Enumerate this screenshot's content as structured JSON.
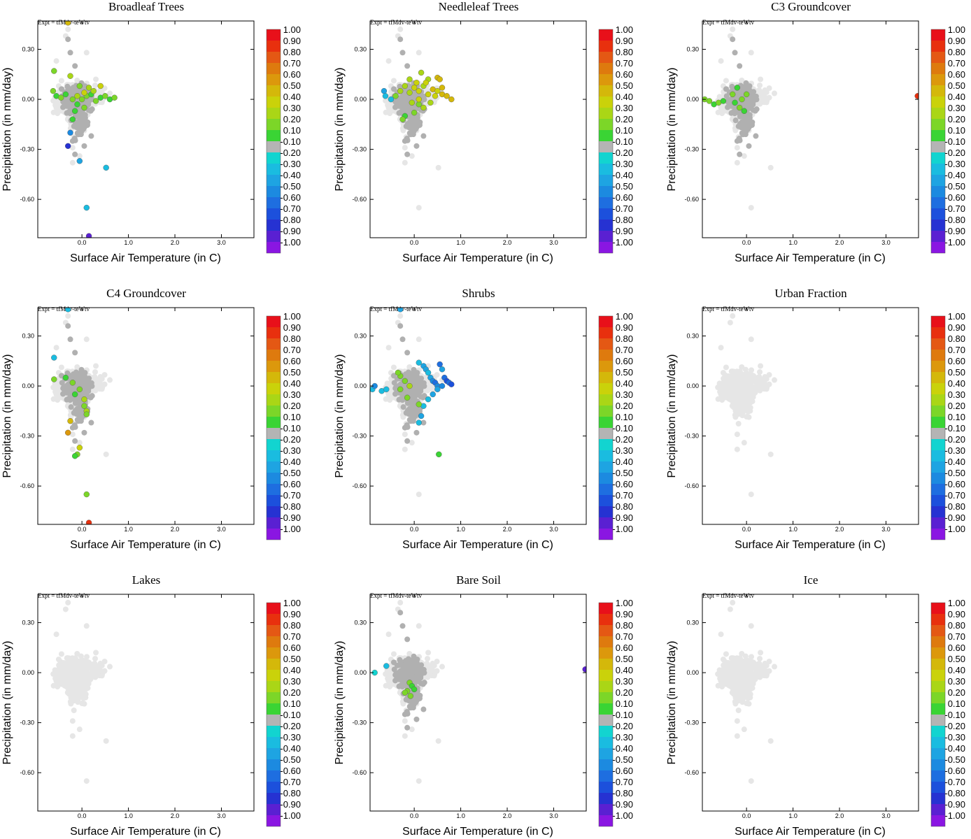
{
  "chart_data": {
    "type": "scatter",
    "common": {
      "experiment_label": "Expt = tfMdv-teWtv",
      "xlabel": "Surface Air Temperature (in C)",
      "ylabel": "Precipitation (in mm/day)",
      "xlim": [
        -0.95,
        3.7
      ],
      "ylim": [
        -0.83,
        0.47
      ],
      "x_ticks": [
        "0.0",
        "1.0",
        "2.0",
        "3.0"
      ],
      "x_tick_values": [
        0,
        1,
        2,
        3
      ],
      "y_ticks": [
        "0.30",
        "0.00",
        "-0.30",
        "-0.60"
      ],
      "y_tick_values": [
        0.3,
        0,
        -0.3,
        -0.6
      ],
      "colorbar_labels": [
        "1.00",
        "0.90",
        "0.80",
        "0.70",
        "0.60",
        "0.50",
        "0.40",
        "0.30",
        "0.20",
        "0.10",
        "-0.10",
        "-0.20",
        "-0.30",
        "-0.40",
        "-0.50",
        "-0.60",
        "-0.70",
        "-0.80",
        "-0.90",
        "-1.00"
      ],
      "colorbar_colors": [
        "#e8101a",
        "#e8300e",
        "#e45814",
        "#de7a0e",
        "#dc980c",
        "#d4b80a",
        "#cad20a",
        "#aad616",
        "#7cd628",
        "#3ad434",
        "#b4b4b4",
        "#12d4d0",
        "#1abce0",
        "#1ea4e2",
        "#1c8ae0",
        "#1e6ee0",
        "#1c50dc",
        "#2632d2",
        "#5a20d2",
        "#8a16e2"
      ],
      "background_color": "#e6e6e6",
      "neutral_color": "#b0b0b0"
    },
    "panels": [
      {
        "title": "Broadleaf Trees",
        "points": [
          [
            -0.3,
            0.46,
            0.5
          ],
          [
            -0.6,
            0.17,
            0.2
          ],
          [
            -0.62,
            0.05,
            0.2
          ],
          [
            -0.55,
            0.02,
            0.15
          ],
          [
            -0.45,
            0.01,
            0.2
          ],
          [
            -0.35,
            0.03,
            0.15
          ],
          [
            -0.2,
            0.0,
            0.2
          ],
          [
            -0.1,
            -0.03,
            0.15
          ],
          [
            0.0,
            0.0,
            0.2
          ],
          [
            0.1,
            0.02,
            0.25
          ],
          [
            0.2,
            0.03,
            0.15
          ],
          [
            0.3,
            -0.01,
            0.2
          ],
          [
            0.4,
            0.01,
            0.15
          ],
          [
            0.5,
            0.02,
            0.2
          ],
          [
            0.6,
            0.0,
            0.15
          ],
          [
            0.7,
            0.01,
            0.2
          ],
          [
            -0.15,
            -0.07,
            0.15
          ],
          [
            0.05,
            -0.05,
            0.2
          ],
          [
            -0.2,
            -0.12,
            0.15
          ],
          [
            0.25,
            0.05,
            0.3
          ],
          [
            -0.05,
            0.08,
            0.25
          ],
          [
            0.15,
            0.07,
            0.3
          ],
          [
            0.4,
            0.08,
            0.4
          ],
          [
            -0.25,
            0.14,
            0.3
          ],
          [
            -0.25,
            -0.2,
            -0.4
          ],
          [
            -0.3,
            -0.28,
            -0.7
          ],
          [
            -0.05,
            -0.37,
            -0.3
          ],
          [
            0.52,
            -0.41,
            -0.2
          ],
          [
            0.1,
            -0.65,
            -0.2
          ],
          [
            0.15,
            -0.82,
            -0.8
          ],
          [
            0.05,
            0.04,
            0.4
          ],
          [
            -0.1,
            0.02,
            0.3
          ]
        ]
      },
      {
        "title": "Needleleaf Trees",
        "points": [
          [
            -0.65,
            0.05,
            -0.3
          ],
          [
            -0.62,
            0.02,
            -0.2
          ],
          [
            -0.5,
            0.0,
            -0.2
          ],
          [
            -0.4,
            0.02,
            0.2
          ],
          [
            -0.3,
            0.05,
            0.3
          ],
          [
            -0.2,
            0.08,
            0.35
          ],
          [
            -0.1,
            0.04,
            0.3
          ],
          [
            0.0,
            0.07,
            0.4
          ],
          [
            0.1,
            0.05,
            0.45
          ],
          [
            0.2,
            0.08,
            0.35
          ],
          [
            0.3,
            0.03,
            0.4
          ],
          [
            0.4,
            0.06,
            0.5
          ],
          [
            0.5,
            0.05,
            0.45
          ],
          [
            0.6,
            0.03,
            0.5
          ],
          [
            0.7,
            0.02,
            0.55
          ],
          [
            0.8,
            0.0,
            0.5
          ],
          [
            0.5,
            0.13,
            0.55
          ],
          [
            0.55,
            0.12,
            0.5
          ],
          [
            0.3,
            0.12,
            0.35
          ],
          [
            0.15,
            0.16,
            0.3
          ],
          [
            0.05,
            0.1,
            0.4
          ],
          [
            -0.05,
            -0.02,
            0.3
          ],
          [
            0.1,
            -0.03,
            0.25
          ],
          [
            0.2,
            -0.05,
            0.3
          ],
          [
            0.0,
            -0.08,
            0.2
          ],
          [
            -0.2,
            -0.1,
            0.15
          ],
          [
            -0.25,
            -0.12,
            0.2
          ],
          [
            0.1,
            0.0,
            0.4
          ],
          [
            0.25,
            0.1,
            0.45
          ],
          [
            0.35,
            -0.02,
            0.35
          ],
          [
            0.45,
            0.02,
            0.4
          ],
          [
            -0.1,
            0.12,
            0.3
          ],
          [
            0.6,
            0.07,
            0.55
          ]
        ]
      },
      {
        "title": "C3 Groundcover",
        "points": [
          [
            -0.9,
            0.0,
            0.2
          ],
          [
            -0.8,
            -0.01,
            0.2
          ],
          [
            -0.7,
            -0.03,
            0.15
          ],
          [
            -0.6,
            -0.02,
            0.2
          ],
          [
            -0.5,
            -0.01,
            0.15
          ],
          [
            -0.3,
            0.03,
            0.2
          ],
          [
            -0.2,
            0.07,
            0.15
          ],
          [
            -0.1,
            0.0,
            0.2
          ],
          [
            -0.15,
            -0.05,
            0.2
          ],
          [
            -0.05,
            -0.07,
            0.15
          ],
          [
            0.0,
            0.03,
            0.2
          ],
          [
            -0.25,
            -0.02,
            0.15
          ],
          [
            3.68,
            0.02,
            0.9
          ]
        ]
      },
      {
        "title": "C4 Groundcover",
        "points": [
          [
            -0.6,
            0.04,
            0.2
          ],
          [
            -0.3,
            0.46,
            -0.2
          ],
          [
            -0.6,
            0.17,
            -0.2
          ],
          [
            -0.35,
            0.05,
            0.15
          ],
          [
            -0.2,
            0.02,
            0.2
          ],
          [
            -0.05,
            -0.02,
            0.2
          ],
          [
            0.05,
            -0.12,
            0.25
          ],
          [
            0.1,
            -0.15,
            0.3
          ],
          [
            0.1,
            -0.17,
            0.25
          ],
          [
            -0.25,
            -0.21,
            0.5
          ],
          [
            -0.3,
            -0.28,
            0.6
          ],
          [
            -0.05,
            -0.37,
            0.45
          ],
          [
            -0.1,
            -0.41,
            0.2
          ],
          [
            -0.15,
            -0.42,
            0.15
          ],
          [
            0.1,
            -0.65,
            0.2
          ],
          [
            0.15,
            -0.82,
            0.95
          ],
          [
            -0.15,
            -0.05,
            0.15
          ],
          [
            0.05,
            -0.08,
            0.3
          ]
        ]
      },
      {
        "title": "Shrubs",
        "points": [
          [
            -0.9,
            -0.02,
            -0.2
          ],
          [
            -0.85,
            0.0,
            -0.4
          ],
          [
            -0.7,
            -0.03,
            -0.2
          ],
          [
            -0.6,
            -0.02,
            -0.2
          ],
          [
            -0.3,
            0.46,
            -0.3
          ],
          [
            0.1,
            0.14,
            -0.2
          ],
          [
            0.2,
            0.12,
            -0.3
          ],
          [
            0.25,
            0.1,
            -0.3
          ],
          [
            0.3,
            0.08,
            -0.2
          ],
          [
            0.35,
            0.05,
            -0.3
          ],
          [
            0.4,
            0.03,
            -0.4
          ],
          [
            0.45,
            0.02,
            -0.5
          ],
          [
            0.5,
            0.0,
            -0.4
          ],
          [
            0.55,
            0.13,
            -0.5
          ],
          [
            0.6,
            0.1,
            -0.3
          ],
          [
            0.65,
            0.05,
            -0.5
          ],
          [
            0.7,
            0.03,
            -0.6
          ],
          [
            0.75,
            0.02,
            -0.5
          ],
          [
            0.8,
            0.01,
            -0.6
          ],
          [
            0.6,
            0.0,
            -0.4
          ],
          [
            0.5,
            -0.02,
            -0.3
          ],
          [
            0.4,
            -0.05,
            -0.3
          ],
          [
            0.3,
            -0.08,
            -0.2
          ],
          [
            0.2,
            -0.12,
            -0.2
          ],
          [
            0.15,
            -0.18,
            -0.3
          ],
          [
            0.1,
            -0.22,
            -0.2
          ],
          [
            -0.3,
            0.06,
            0.2
          ],
          [
            -0.2,
            0.03,
            0.2
          ],
          [
            -0.3,
            -0.02,
            0.25
          ],
          [
            -0.1,
            0.0,
            0.3
          ],
          [
            -0.15,
            -0.07,
            0.2
          ],
          [
            0.1,
            -0.11,
            0.25
          ],
          [
            0.53,
            -0.41,
            0.15
          ],
          [
            -0.35,
            0.08,
            0.25
          ]
        ]
      },
      {
        "title": "Urban Fraction",
        "points": []
      },
      {
        "title": "Lakes",
        "points": []
      },
      {
        "title": "Bare Soil",
        "points": [
          [
            -0.6,
            0.04,
            -0.2
          ],
          [
            -0.85,
            0.0,
            -0.1
          ],
          [
            -0.1,
            -0.06,
            0.2
          ],
          [
            -0.05,
            -0.08,
            0.15
          ],
          [
            -0.15,
            -0.11,
            0.2
          ],
          [
            0.0,
            -0.1,
            0.15
          ],
          [
            -0.08,
            -0.14,
            0.2
          ],
          [
            -0.2,
            -0.12,
            0.2
          ],
          [
            3.68,
            0.02,
            -0.8
          ]
        ]
      },
      {
        "title": "Ice",
        "points": []
      }
    ]
  }
}
